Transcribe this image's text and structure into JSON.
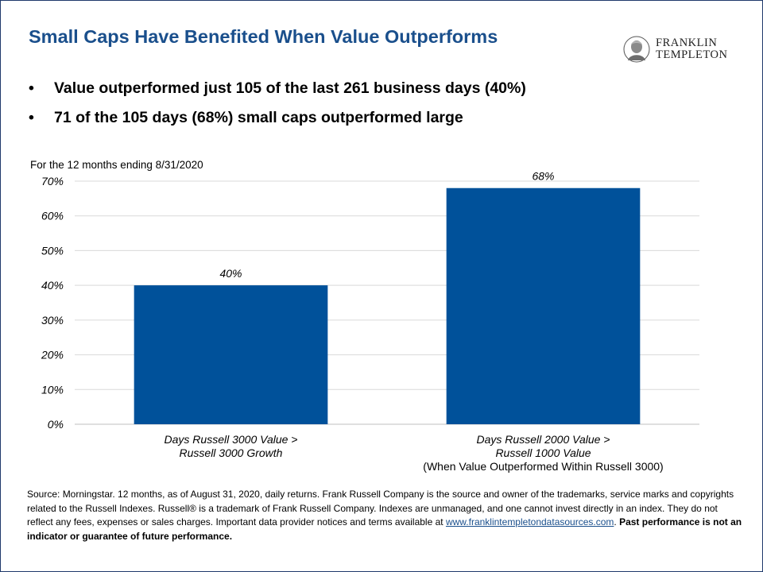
{
  "header": {
    "title": "Small Caps Have Benefited When Value Outperforms",
    "logo": {
      "line1": "FRANKLIN",
      "line2": "TEMPLETON",
      "icon": "franklin-portrait-icon"
    },
    "bullets": [
      "Value outperformed just 105 of the last 261 business days (40%)",
      "71 of the 105 days (68%)  small caps outperformed large"
    ]
  },
  "colors": {
    "title": "#1a4f8c",
    "bar": "#00519a",
    "grid": "#d9d9d9",
    "frame": "#1f3a6b"
  },
  "chart_data": {
    "type": "bar",
    "subtitle": "For the 12 months ending 8/31/2020",
    "categories": [
      [
        "Days Russell 3000 Value >",
        "Russell 3000 Growth"
      ],
      [
        "Days Russell 2000 Value >",
        "Russell 1000 Value",
        "(When Value Outperformed Within Russell 3000)"
      ]
    ],
    "values": [
      40,
      68
    ],
    "data_labels": [
      "40%",
      "68%"
    ],
    "ylim": [
      0,
      70
    ],
    "yticks": [
      "0%",
      "10%",
      "20%",
      "30%",
      "40%",
      "50%",
      "60%",
      "70%"
    ],
    "grid": true,
    "legend": "none"
  },
  "footnote": {
    "text": "Source: Morningstar. 12 months, as of August 31, 2020, daily returns. Frank Russell Company is the source and owner of the trademarks, service marks and copyrights related to the Russell Indexes. Russell® is a trademark of Frank Russell Company. Indexes are unmanaged, and one cannot invest directly in an index. They do not reflect any fees, expenses or sales charges. Important data provider notices and terms available at ",
    "link": "www.franklintempletondatasources.com",
    "after_link": ". ",
    "bold": "Past performance  is not an indicator or guarantee  of future performance."
  }
}
